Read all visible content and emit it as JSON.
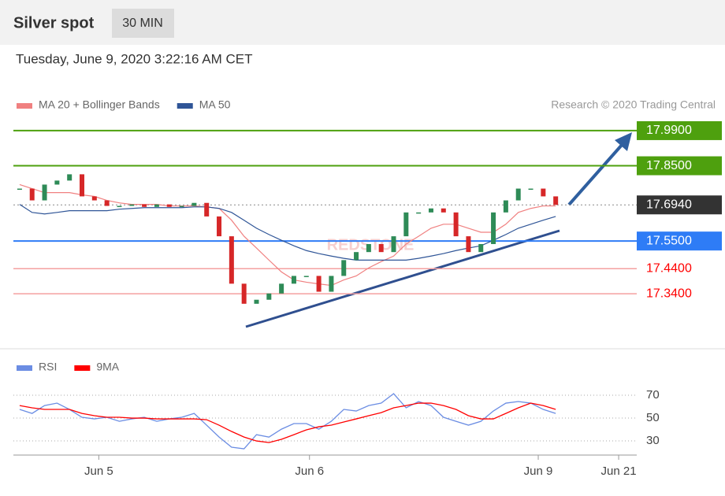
{
  "header": {
    "title": "Silver spot",
    "timeframe": "30 MIN",
    "timestamp": "Tuesday, June 9, 2020 3:22:16 AM CET",
    "credit": "Research © 2020 Trading Central",
    "watermark": "REDSTONE"
  },
  "chart_data": [
    {
      "type": "candlestick",
      "x": [
        1,
        3,
        5,
        7,
        9,
        11,
        13,
        15,
        17,
        19,
        21,
        23,
        25,
        27,
        29,
        31,
        33,
        35,
        37,
        39,
        41,
        43,
        45,
        47,
        49,
        51,
        53,
        55,
        57,
        59,
        61,
        63,
        65,
        67,
        69,
        71,
        73,
        75,
        77,
        79,
        81,
        83,
        85,
        87
      ],
      "xlim": [
        0,
        100
      ],
      "values": [
        17.759,
        17.712,
        17.775,
        17.791,
        17.816,
        17.728,
        17.712,
        17.69,
        17.69,
        17.696,
        17.686,
        17.696,
        17.686,
        17.69,
        17.702,
        17.648,
        17.569,
        17.38,
        17.3,
        17.316,
        17.341,
        17.38,
        17.411,
        17.411,
        17.348,
        17.411,
        17.474,
        17.506,
        17.538,
        17.506,
        17.569,
        17.664,
        17.664,
        17.68,
        17.664,
        17.569,
        17.506,
        17.538,
        17.664,
        17.712,
        17.759,
        17.759,
        17.728,
        17.694
      ],
      "up_color": "#2e8b57",
      "down_color": "#d62728",
      "series": [
        {
          "name": "MA 20 + Bollinger Bands",
          "color": "#f08080",
          "values": [
            17.775,
            17.759,
            17.743,
            17.743,
            17.743,
            17.734,
            17.728,
            17.712,
            17.702,
            17.696,
            17.696,
            17.696,
            17.69,
            17.69,
            17.69,
            17.686,
            17.68,
            17.633,
            17.569,
            17.522,
            17.474,
            17.427,
            17.395,
            17.386,
            17.379,
            17.373,
            17.395,
            17.411,
            17.443,
            17.468,
            17.49,
            17.538,
            17.569,
            17.601,
            17.617,
            17.617,
            17.601,
            17.585,
            17.585,
            17.617,
            17.664,
            17.68,
            17.69,
            17.69
          ]
        },
        {
          "name": "MA 50",
          "color": "#2f5597",
          "values": [
            17.696,
            17.664,
            17.658,
            17.664,
            17.671,
            17.671,
            17.671,
            17.671,
            17.677,
            17.68,
            17.683,
            17.683,
            17.683,
            17.683,
            17.686,
            17.686,
            17.68,
            17.664,
            17.633,
            17.601,
            17.576,
            17.553,
            17.531,
            17.512,
            17.5,
            17.49,
            17.481,
            17.474,
            17.474,
            17.474,
            17.474,
            17.474,
            17.481,
            17.49,
            17.5,
            17.512,
            17.522,
            17.531,
            17.553,
            17.576,
            17.601,
            17.617,
            17.633,
            17.648
          ]
        }
      ],
      "ylim": [
        17.13,
        18.04
      ],
      "levels": [
        {
          "value": 17.99,
          "label": "17.9900",
          "color": "#4ea00e",
          "style": "box"
        },
        {
          "value": 17.85,
          "label": "17.8500",
          "color": "#4ea00e",
          "style": "box"
        },
        {
          "value": 17.694,
          "label": "17.6940",
          "color": "#333333",
          "style": "current"
        },
        {
          "value": 17.55,
          "label": "17.5500",
          "color": "#2e7cf6",
          "style": "box"
        },
        {
          "value": 17.44,
          "label": "17.4400",
          "color": "#ff0000",
          "style": "text"
        },
        {
          "value": 17.34,
          "label": "17.3400",
          "color": "#ff0000",
          "style": "text"
        }
      ]
    },
    {
      "type": "line",
      "x": [
        1,
        3,
        5,
        7,
        9,
        11,
        13,
        15,
        17,
        19,
        21,
        23,
        25,
        27,
        29,
        31,
        33,
        35,
        37,
        39,
        41,
        43,
        45,
        47,
        49,
        51,
        53,
        55,
        57,
        59,
        61,
        63,
        65,
        67,
        69,
        71,
        73,
        75,
        77,
        79,
        81,
        83,
        85,
        87
      ],
      "xlim": [
        0,
        100
      ],
      "xticks": [
        {
          "value": 13.7,
          "label": "Jun 5"
        },
        {
          "value": 47.5,
          "label": "Jun 6"
        },
        {
          "value": 84.2,
          "label": "Jun 9"
        },
        {
          "value": 97.1,
          "label": "Jun 21"
        }
      ],
      "ylim": [
        19.7,
        78.3
      ],
      "yticks": [
        30,
        50,
        70
      ],
      "series": [
        {
          "name": "RSI",
          "color": "#6b8de3",
          "values": [
            57.6,
            54.1,
            61.0,
            63.1,
            57.6,
            50.7,
            49.3,
            50.7,
            47.2,
            49.3,
            50.7,
            47.2,
            49.3,
            50.7,
            54.1,
            43.8,
            33.4,
            24.5,
            23.1,
            35.5,
            33.4,
            40.3,
            45.2,
            45.2,
            40.3,
            47.2,
            57.6,
            56.2,
            61.0,
            63.1,
            71.4,
            59.0,
            64.5,
            61.0,
            50.7,
            47.2,
            43.8,
            47.2,
            56.2,
            63.1,
            64.5,
            63.1,
            57.6,
            54.1
          ]
        },
        {
          "name": "9MA",
          "color": "#ff0000",
          "values": [
            61.0,
            59.0,
            57.6,
            57.6,
            57.6,
            54.1,
            52.1,
            50.7,
            50.7,
            50.0,
            50.0,
            49.3,
            49.3,
            49.3,
            49.3,
            48.6,
            43.8,
            38.3,
            33.4,
            30.0,
            28.6,
            31.4,
            35.5,
            39.7,
            42.4,
            43.8,
            46.6,
            49.3,
            52.1,
            54.8,
            59.0,
            61.0,
            63.1,
            63.1,
            61.0,
            57.6,
            52.1,
            49.3,
            49.3,
            54.1,
            59.0,
            63.1,
            61.0,
            57.6
          ]
        }
      ]
    }
  ]
}
